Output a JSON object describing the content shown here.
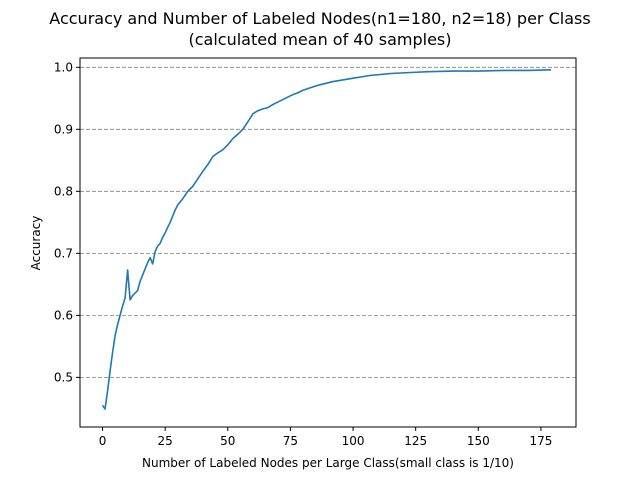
{
  "chart_data": {
    "type": "line",
    "title": "Accuracy and Number of Labeled Nodes(n1=180, n2=18) per Class",
    "subtitle": "(calculated mean of 40 samples)",
    "xlabel": "Number of Labeled Nodes per Large Class(small class is 1/10)",
    "ylabel": "Accuracy",
    "xlim": [
      -9,
      189
    ],
    "ylim": [
      0.42,
      1.015
    ],
    "xticks": [
      0,
      25,
      50,
      75,
      100,
      125,
      150,
      175
    ],
    "xtick_labels": [
      "0",
      "25",
      "50",
      "75",
      "100",
      "125",
      "150",
      "175"
    ],
    "yticks": [
      0.5,
      0.6,
      0.7,
      0.8,
      0.9,
      1.0
    ],
    "ytick_labels": [
      "0.5",
      "0.6",
      "0.7",
      "0.8",
      "0.9",
      "1.0"
    ],
    "grid": "horizontal dashed",
    "colors": {
      "line": "#1f77b4",
      "grid": "#808080",
      "axis": "#000000"
    },
    "series": [
      {
        "x": [
          0,
          1,
          2,
          3,
          4,
          5,
          6,
          7,
          8,
          9,
          10,
          11,
          12,
          13,
          14,
          15,
          16,
          17,
          18,
          19,
          20,
          21,
          22,
          23,
          24,
          25,
          26,
          27,
          28,
          29,
          30,
          32,
          34,
          36,
          38,
          40,
          42,
          44,
          46,
          48,
          50,
          52,
          54,
          56,
          58,
          60,
          62,
          64,
          66,
          68,
          70,
          72,
          74,
          76,
          78,
          80,
          83,
          86,
          89,
          92,
          95,
          98,
          101,
          104,
          107,
          110,
          115,
          120,
          125,
          130,
          140,
          150,
          160,
          170,
          179
        ],
        "values": [
          0.455,
          0.449,
          0.478,
          0.51,
          0.54,
          0.567,
          0.585,
          0.6,
          0.615,
          0.628,
          0.673,
          0.625,
          0.632,
          0.636,
          0.64,
          0.655,
          0.665,
          0.675,
          0.685,
          0.693,
          0.683,
          0.703,
          0.712,
          0.716,
          0.726,
          0.733,
          0.742,
          0.75,
          0.76,
          0.77,
          0.778,
          0.788,
          0.8,
          0.808,
          0.82,
          0.832,
          0.843,
          0.856,
          0.862,
          0.867,
          0.875,
          0.885,
          0.892,
          0.9,
          0.912,
          0.925,
          0.93,
          0.933,
          0.935,
          0.94,
          0.944,
          0.948,
          0.952,
          0.956,
          0.959,
          0.963,
          0.967,
          0.971,
          0.974,
          0.977,
          0.979,
          0.981,
          0.983,
          0.985,
          0.987,
          0.988,
          0.99,
          0.991,
          0.992,
          0.993,
          0.994,
          0.994,
          0.995,
          0.995,
          0.996
        ]
      }
    ]
  }
}
